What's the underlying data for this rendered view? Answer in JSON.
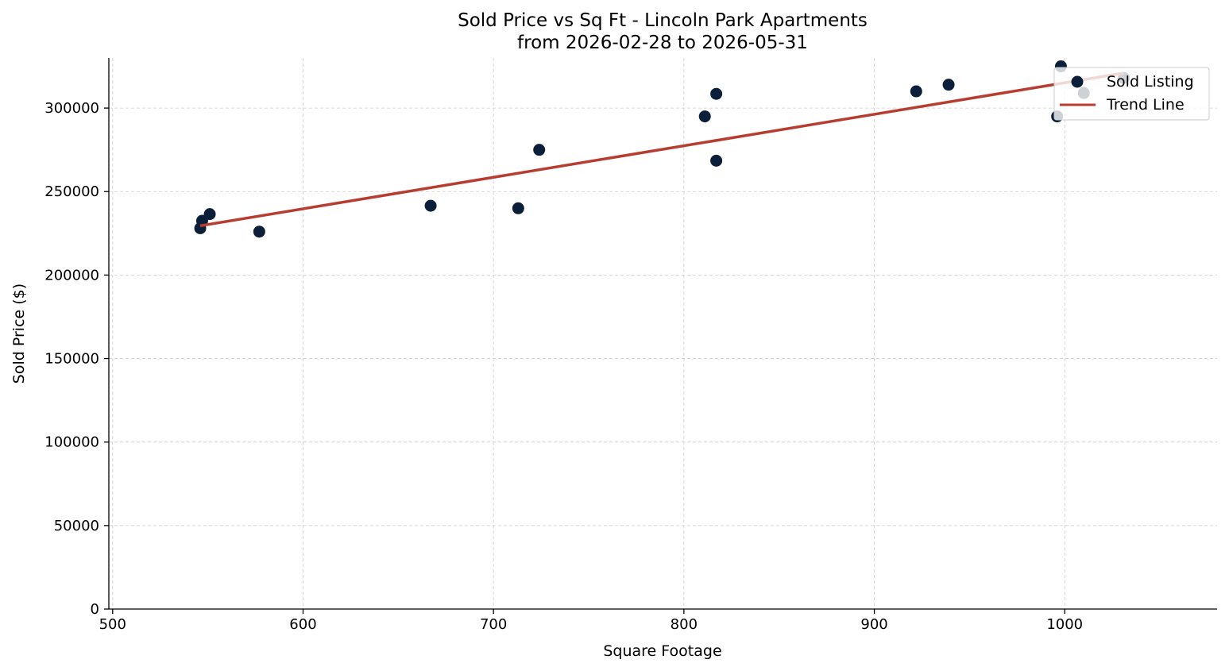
{
  "chart_data": {
    "type": "scatter",
    "title": "Sold Price vs Sq Ft - Lincoln Park Apartments",
    "subtitle": "from 2026-02-28 to 2026-05-31",
    "xlabel": "Square Footage",
    "ylabel": "Sold Price ($)",
    "xlim": [
      498,
      1080
    ],
    "ylim": [
      0,
      330000
    ],
    "xticks": [
      500,
      600,
      700,
      800,
      900,
      1000
    ],
    "yticks": [
      0,
      50000,
      100000,
      150000,
      200000,
      250000,
      300000
    ],
    "grid": true,
    "legend_position": "top-right",
    "series": [
      {
        "name": "Sold Listing",
        "kind": "scatter",
        "color": "#0b1f3a",
        "points": [
          {
            "x": 546,
            "y": 228000
          },
          {
            "x": 547,
            "y": 232500
          },
          {
            "x": 551,
            "y": 236500
          },
          {
            "x": 577,
            "y": 226000
          },
          {
            "x": 667,
            "y": 241500
          },
          {
            "x": 713,
            "y": 240000
          },
          {
            "x": 724,
            "y": 275000
          },
          {
            "x": 811,
            "y": 295000
          },
          {
            "x": 817,
            "y": 308500
          },
          {
            "x": 817,
            "y": 268500
          },
          {
            "x": 922,
            "y": 310000
          },
          {
            "x": 939,
            "y": 314000
          },
          {
            "x": 996,
            "y": 295000
          },
          {
            "x": 998,
            "y": 325000
          },
          {
            "x": 1010,
            "y": 309000
          },
          {
            "x": 1031,
            "y": 318000
          }
        ]
      },
      {
        "name": "Trend Line",
        "kind": "line",
        "color": "#b83c2f",
        "points": [
          {
            "x": 546,
            "y": 229500
          },
          {
            "x": 1031,
            "y": 321000
          }
        ]
      }
    ]
  }
}
